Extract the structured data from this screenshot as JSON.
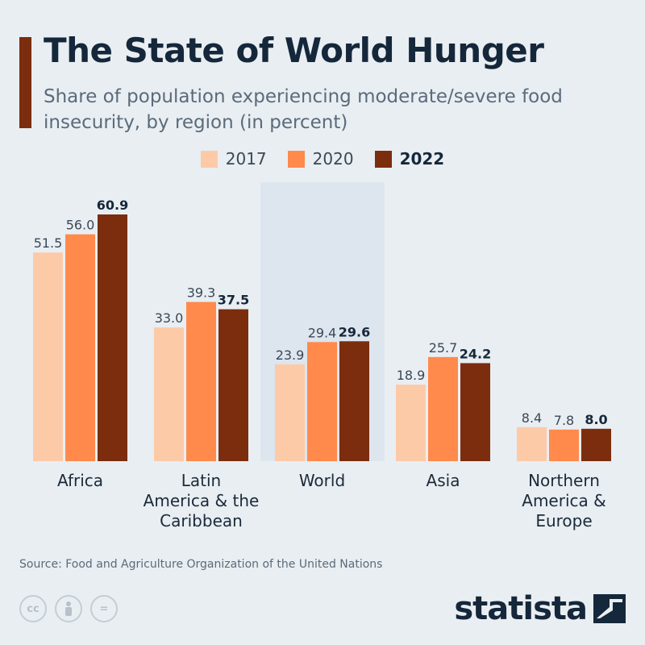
{
  "header": {
    "title": "The State of World Hunger",
    "subtitle": "Share of population experiencing moderate/severe food insecurity, by region (in percent)"
  },
  "colors": {
    "accent": "#7b2d0e",
    "s2017": "#fdcaa8",
    "s2020": "#ff8a4b",
    "s2022": "#7b2d0e",
    "highlight": "#dde5ee"
  },
  "chart_data": {
    "type": "bar",
    "categories": [
      "Africa",
      "Latin America & the Caribbean",
      "World",
      "Asia",
      "Northern America & Europe"
    ],
    "category_lines": [
      [
        "Africa"
      ],
      [
        "Latin",
        "America & the",
        "Caribbean"
      ],
      [
        "World"
      ],
      [
        "Asia"
      ],
      [
        "Northern",
        "America &",
        "Europe"
      ]
    ],
    "highlighted_category": "World",
    "series": [
      {
        "name": "2017",
        "values": [
          51.5,
          33.0,
          23.9,
          18.9,
          8.4
        ]
      },
      {
        "name": "2020",
        "values": [
          56.0,
          39.3,
          29.4,
          25.7,
          7.8
        ]
      },
      {
        "name": "2022",
        "values": [
          60.9,
          37.5,
          29.6,
          24.2,
          8.0
        ]
      }
    ],
    "title": "The State of World Hunger",
    "ylim": [
      0,
      61
    ],
    "grid": false,
    "legend": "top-center"
  },
  "footer": {
    "source": "Source: Food and Agriculture Organization of the United Nations",
    "brand": "statista",
    "cc_icons": [
      "cc-icon",
      "attribution-icon",
      "no-derivatives-icon"
    ],
    "cc_glyphs": [
      "cc",
      "",
      "="
    ]
  }
}
